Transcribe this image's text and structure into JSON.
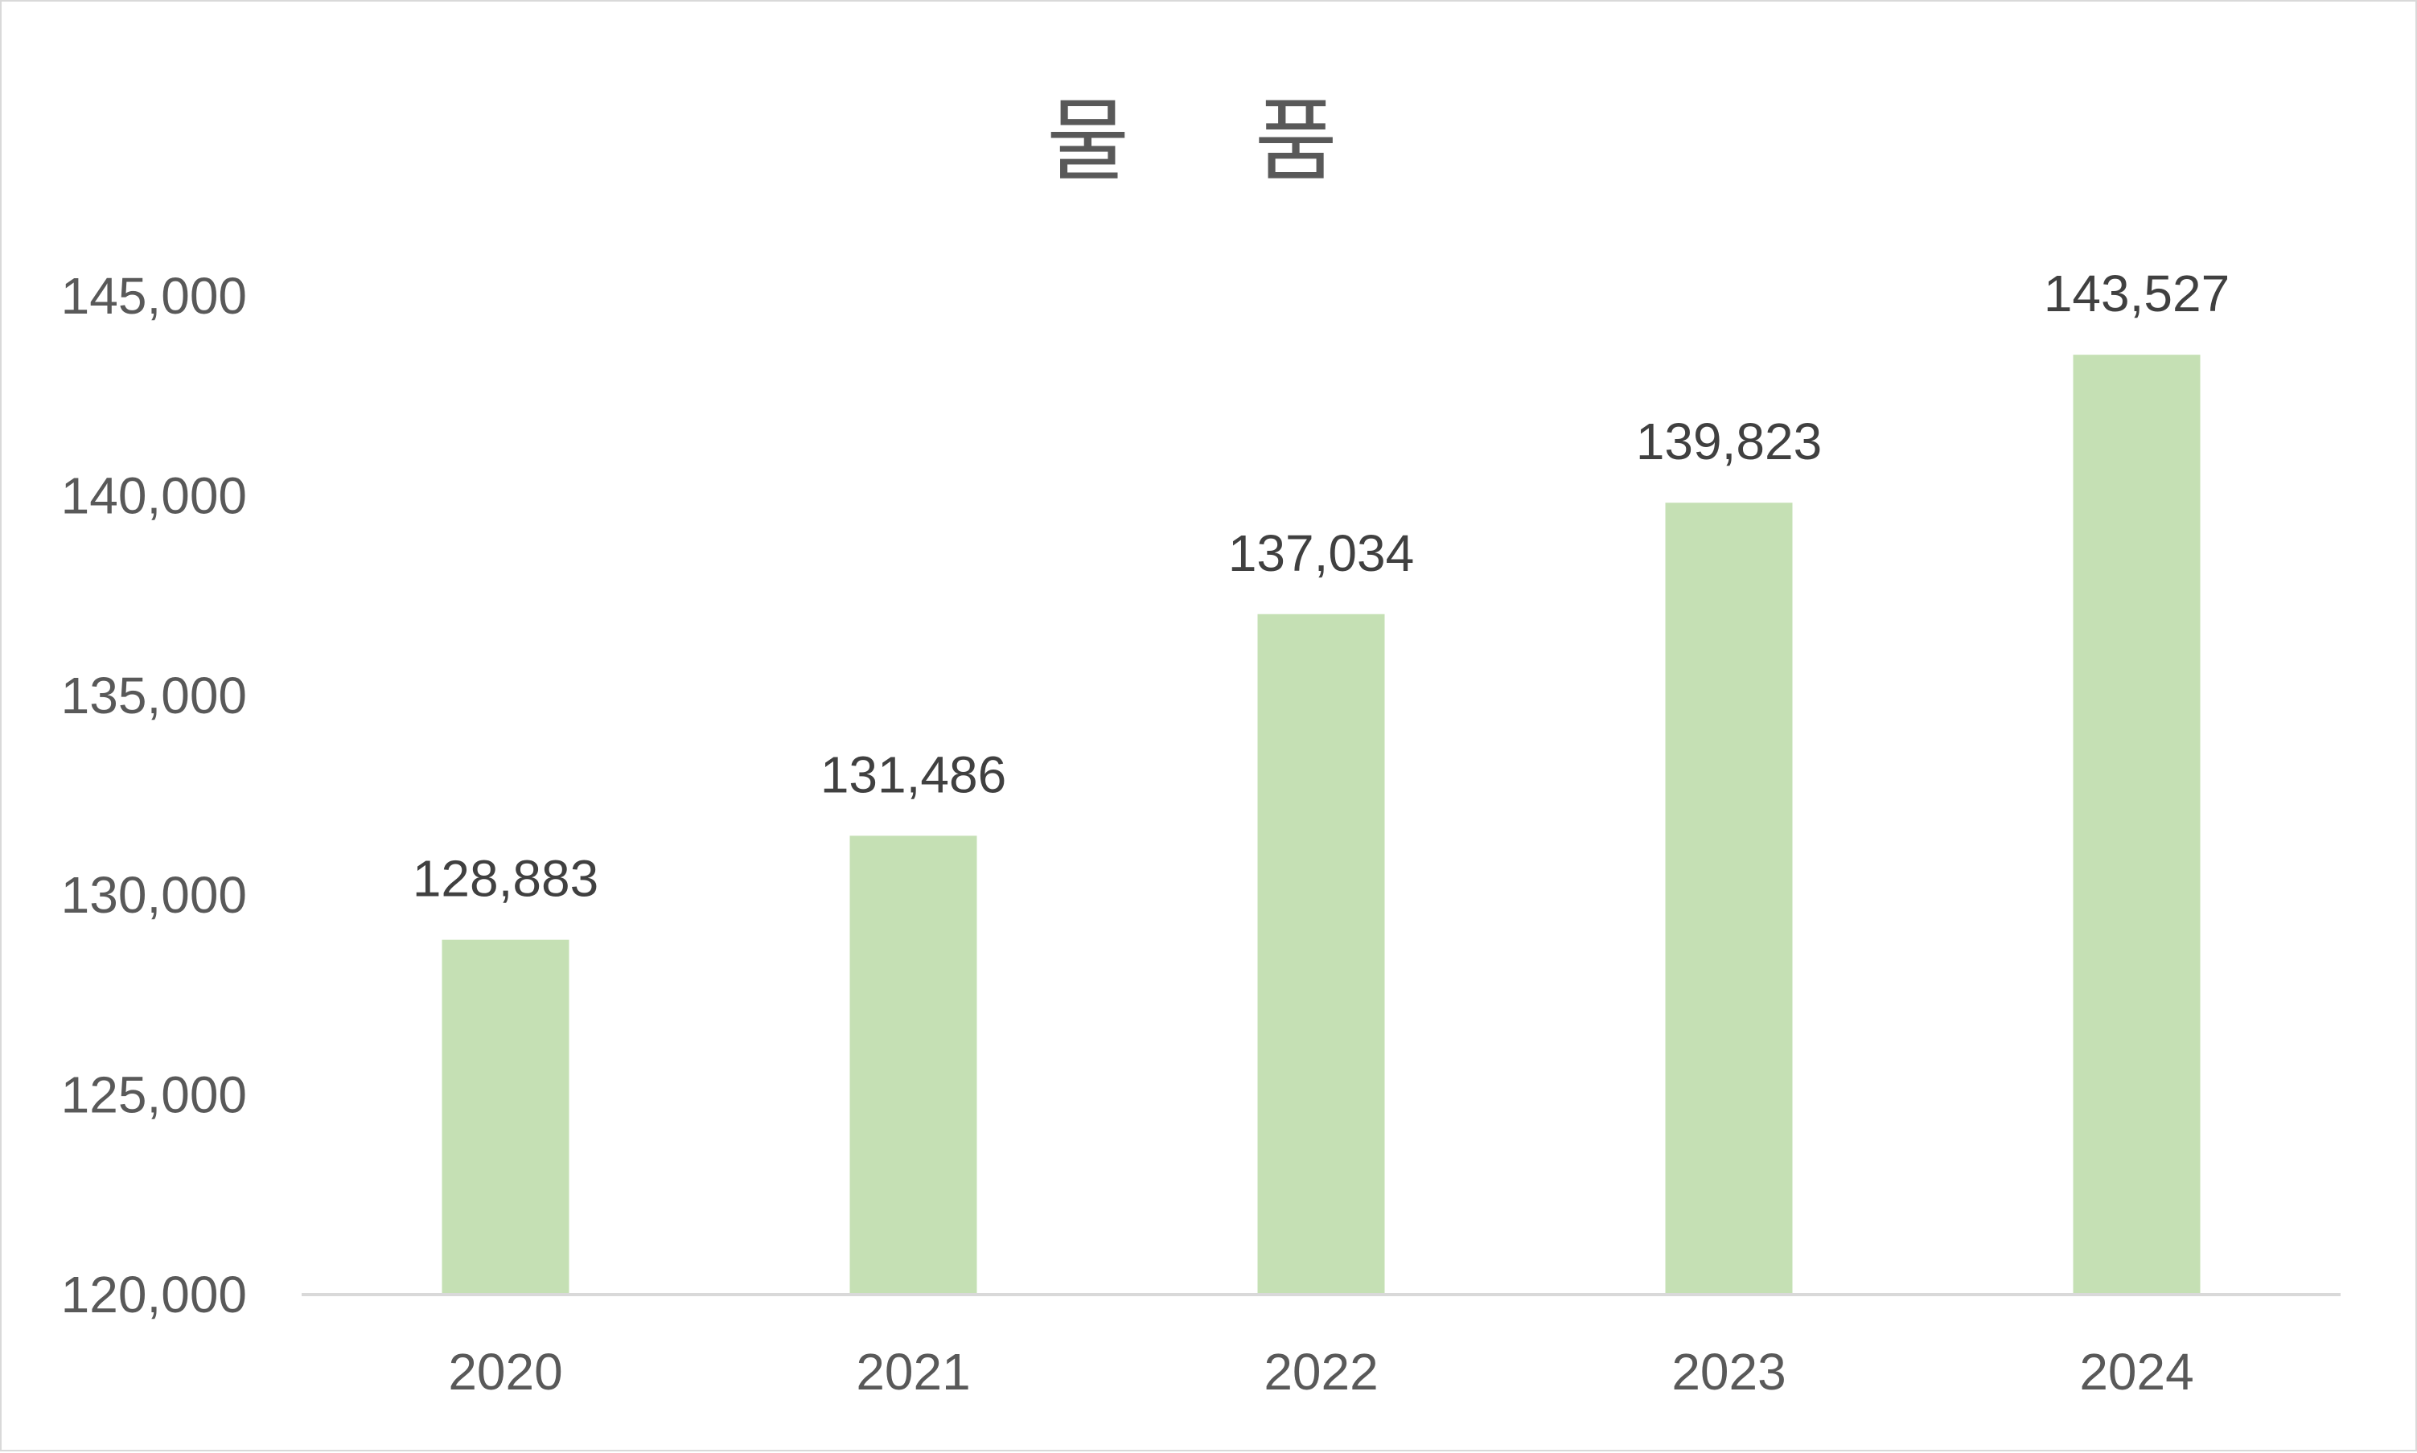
{
  "chart_data": {
    "type": "bar",
    "title": "물 품",
    "xlabel": "",
    "ylabel": "",
    "categories": [
      "2020",
      "2021",
      "2022",
      "2023",
      "2024"
    ],
    "values": [
      128883,
      131486,
      137034,
      139823,
      143527
    ],
    "data_labels": [
      "128,883",
      "131,486",
      "137,034",
      "139,823",
      "143,527"
    ],
    "ylim": [
      120000,
      145000
    ],
    "yticks": [
      120000,
      125000,
      130000,
      135000,
      140000,
      145000
    ],
    "ytick_labels": [
      "120,000",
      "125,000",
      "130,000",
      "135,000",
      "140,000",
      "145,000"
    ],
    "grid": false,
    "legend": "none",
    "colors": {
      "bar": "#c5e0b4",
      "axis_line": "#d9d9d9",
      "text": "#595959",
      "label": "#404040"
    }
  }
}
